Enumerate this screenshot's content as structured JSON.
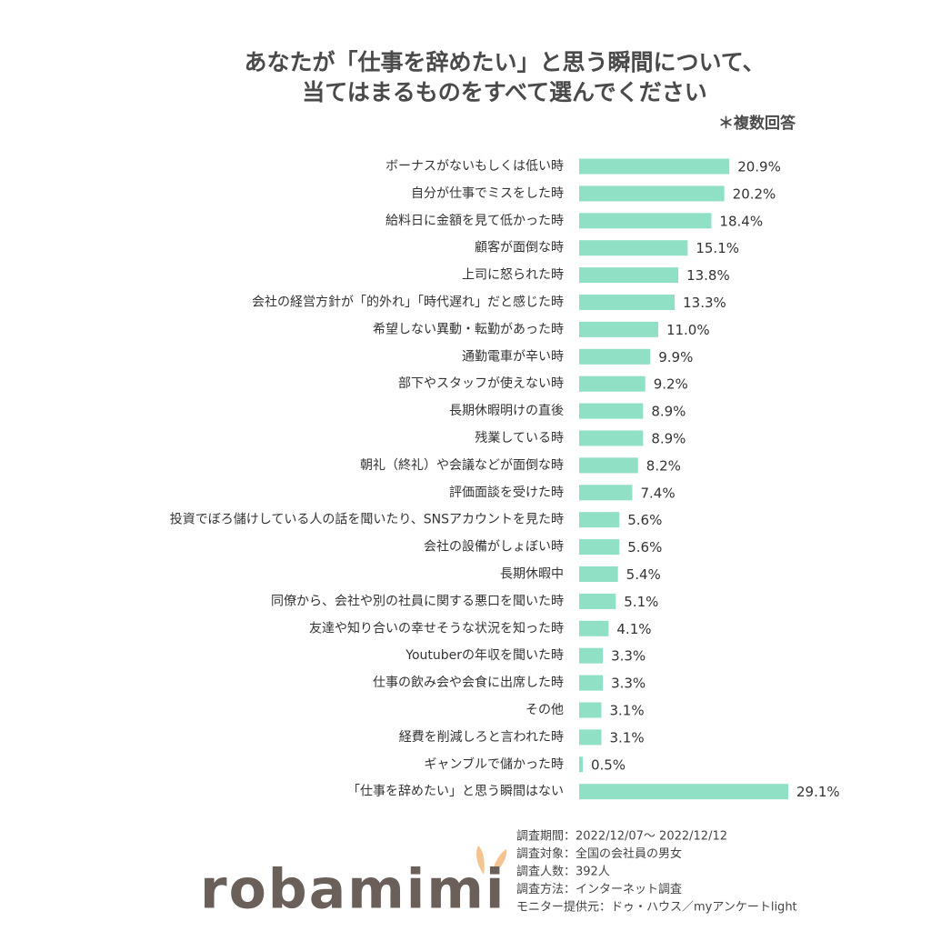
{
  "chart_data": {
    "type": "bar",
    "orientation": "horizontal",
    "title": [
      "あなたが「仕事を辞めたい」と思う瞬間について、",
      "当てはまるものをすべて選んでください"
    ],
    "subtitle": "＊複数回答",
    "color": "#8fe0c4",
    "categories": [
      "ボーナスがないもしくは低い時",
      "自分が仕事でミスをした時",
      "給料日に金額を見て低かった時",
      "顧客が面倒な時",
      "上司に怒られた時",
      "会社の経営方針が「的外れ」「時代遅れ」だと感じた時",
      "希望しない異動・転勤があった時",
      "通勤電車が辛い時",
      "部下やスタッフが使えない時",
      "長期休暇明けの直後",
      "残業している時",
      "朝礼（終礼）や会議などが面倒な時",
      "評価面談を受けた時",
      "投資でぼろ儲けしている人の話を聞いたり、SNSアカウントを見た時",
      "会社の設備がしょぼい時",
      "長期休暇中",
      "同僚から、会社や別の社員に関する悪口を聞いた時",
      "友達や知り合いの幸せそうな状況を知った時",
      "Youtuberの年収を聞いた時",
      "仕事の飲み会や会食に出席した時",
      "その他",
      "経費を削減しろと言われた時",
      "ギャンブルで儲かった時",
      "「仕事を辞めたい」と思う瞬間はない"
    ],
    "values": [
      20.9,
      20.2,
      18.4,
      15.1,
      13.8,
      13.3,
      11.0,
      9.9,
      9.2,
      8.9,
      8.9,
      8.2,
      7.4,
      5.6,
      5.6,
      5.4,
      5.1,
      4.1,
      3.3,
      3.3,
      3.1,
      3.1,
      0.5,
      29.1
    ],
    "value_labels": [
      "20.9%",
      "20.2%",
      "18.4%",
      "15.1%",
      "13.8%",
      "13.3%",
      "11.0%",
      "9.9%",
      "9.2%",
      "8.9%",
      "8.9%",
      "8.2%",
      "7.4%",
      "5.6%",
      "5.6%",
      "5.4%",
      "5.1%",
      "4.1%",
      "3.3%",
      "3.3%",
      "3.1%",
      "3.1%",
      "0.5%",
      "29.1%"
    ]
  },
  "footer": {
    "notes": [
      "調査期間：2022/12/07～ 2022/12/12",
      "調査対象：全国の会社員の男女",
      "調査人数：392人",
      "調査方法：インターネット調査",
      "モニター提供元：ドゥ・ハウス／myアンケートlight"
    ],
    "logo": "robamimi"
  }
}
